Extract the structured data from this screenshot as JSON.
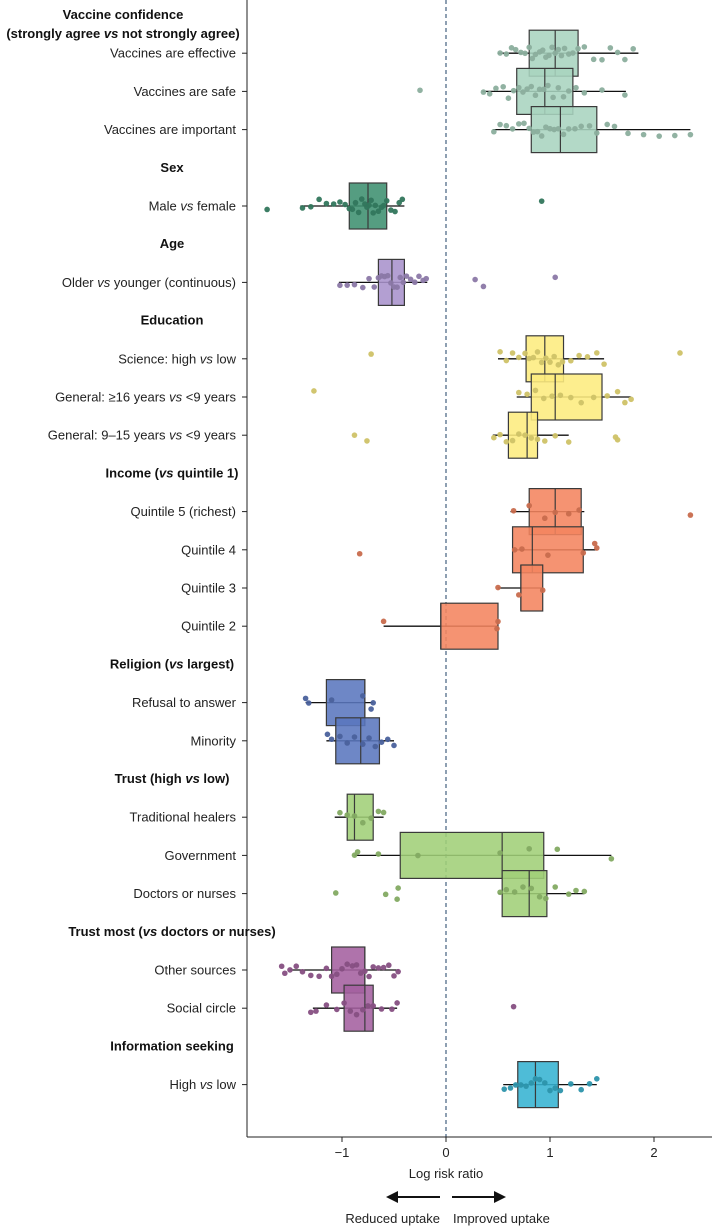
{
  "chart_data": {
    "type": "boxplot",
    "xlabel": "Log risk ratio",
    "xlim": [
      -1.92,
      2.55
    ],
    "x_ticks": [
      -1,
      0,
      1,
      2
    ],
    "x_tick_labels": [
      "−1",
      "0",
      "1",
      "2"
    ],
    "reference_line": 0,
    "direction_labels": {
      "left": "Reduced uptake",
      "right": "Improved uptake"
    },
    "rows": [
      {
        "kind": "header",
        "label": "Vaccine confidence",
        "label2": "(strongly agree vs not strongly agree)"
      },
      {
        "kind": "item",
        "label": "Vaccines are effective",
        "color": "#a9d4bf",
        "q1": 0.8,
        "median": 1.05,
        "q3": 1.27,
        "wmin": 0.5,
        "wmax": 1.85,
        "points": [
          0.52,
          0.58,
          0.63,
          0.67,
          0.72,
          0.76,
          0.8,
          0.83,
          0.86,
          0.9,
          0.93,
          0.96,
          0.99,
          1.02,
          1.05,
          1.08,
          1.11,
          1.14,
          1.18,
          1.22,
          1.27,
          1.33,
          1.42,
          1.5,
          1.58,
          1.65,
          1.72,
          1.8
        ]
      },
      {
        "kind": "item",
        "label": "Vaccines are safe",
        "color": "#a9d4bf",
        "q1": 0.68,
        "median": 0.95,
        "q3": 1.22,
        "wmin": 0.35,
        "wmax": 1.73,
        "points": [
          -0.25,
          0.36,
          0.42,
          0.48,
          0.55,
          0.6,
          0.65,
          0.7,
          0.74,
          0.78,
          0.82,
          0.86,
          0.9,
          0.94,
          0.98,
          1.03,
          1.08,
          1.13,
          1.18,
          1.25,
          1.33,
          1.5,
          1.72
        ]
      },
      {
        "kind": "item",
        "label": "Vaccines are important",
        "color": "#a9d4bf",
        "q1": 0.82,
        "median": 1.1,
        "q3": 1.45,
        "wmin": 0.45,
        "wmax": 2.35,
        "points": [
          0.46,
          0.52,
          0.58,
          0.64,
          0.7,
          0.75,
          0.8,
          0.84,
          0.88,
          0.92,
          0.96,
          1.0,
          1.04,
          1.08,
          1.13,
          1.18,
          1.24,
          1.3,
          1.38,
          1.45,
          1.55,
          1.62,
          1.75,
          1.9,
          2.05,
          2.2,
          2.35
        ]
      },
      {
        "kind": "header",
        "label": "Sex"
      },
      {
        "kind": "item",
        "label": "Male vs female",
        "color": "#3d9070",
        "q1": -0.93,
        "median": -0.75,
        "q3": -0.57,
        "wmin": -1.4,
        "wmax": -0.4,
        "points": [
          -1.72,
          -1.38,
          -1.3,
          -1.22,
          -1.15,
          -1.08,
          -1.02,
          -0.97,
          -0.93,
          -0.9,
          -0.87,
          -0.84,
          -0.81,
          -0.78,
          -0.76,
          -0.74,
          -0.72,
          -0.7,
          -0.68,
          -0.65,
          -0.62,
          -0.6,
          -0.57,
          -0.53,
          -0.49,
          -0.45,
          -0.42,
          0.92
        ]
      },
      {
        "kind": "header",
        "label": "Age"
      },
      {
        "kind": "item",
        "label": "Older vs younger (continuous)",
        "color": "#a992cc",
        "q1": -0.65,
        "median": -0.52,
        "q3": -0.4,
        "wmin": -1.03,
        "wmax": -0.18,
        "points": [
          -1.02,
          -0.95,
          -0.88,
          -0.8,
          -0.74,
          -0.69,
          -0.65,
          -0.62,
          -0.59,
          -0.56,
          -0.53,
          -0.5,
          -0.47,
          -0.44,
          -0.41,
          -0.38,
          -0.34,
          -0.3,
          -0.26,
          -0.22,
          -0.19,
          0.28,
          0.36,
          1.05
        ]
      },
      {
        "kind": "header",
        "label": "Education"
      },
      {
        "kind": "item",
        "label": "Science: high vs low",
        "color": "#fdec7e",
        "q1": 0.77,
        "median": 0.95,
        "q3": 1.13,
        "wmin": 0.5,
        "wmax": 1.52,
        "points": [
          -0.72,
          0.52,
          0.58,
          0.64,
          0.7,
          0.76,
          0.8,
          0.84,
          0.88,
          0.92,
          0.96,
          1.0,
          1.04,
          1.08,
          1.12,
          1.2,
          1.28,
          1.36,
          1.45,
          1.52,
          2.25
        ]
      },
      {
        "kind": "item",
        "label": "General: ≥16 years vs <9 years",
        "color": "#fdec7e",
        "q1": 0.82,
        "median": 1.05,
        "q3": 1.5,
        "wmin": 0.68,
        "wmax": 1.78,
        "points": [
          -1.27,
          0.7,
          0.78,
          0.86,
          0.94,
          1.02,
          1.1,
          1.2,
          1.3,
          1.42,
          1.55,
          1.65,
          1.72,
          1.78
        ]
      },
      {
        "kind": "item",
        "label": "General: 9–15 years vs <9 years",
        "color": "#fdec7e",
        "q1": 0.6,
        "median": 0.78,
        "q3": 0.88,
        "wmin": 0.45,
        "wmax": 1.18,
        "points": [
          -0.88,
          -0.76,
          0.46,
          0.52,
          0.58,
          0.64,
          0.7,
          0.76,
          0.82,
          0.88,
          0.95,
          1.05,
          1.18,
          1.63,
          1.65
        ]
      },
      {
        "kind": "header",
        "label": "Income (vs quintile 1)"
      },
      {
        "kind": "item",
        "label": "Quintile 5 (richest)",
        "color": "#f4845e",
        "q1": 0.8,
        "median": 1.05,
        "q3": 1.3,
        "wmin": 0.62,
        "wmax": 1.33,
        "points": [
          0.65,
          0.8,
          0.95,
          1.05,
          1.18,
          1.28,
          2.35
        ]
      },
      {
        "kind": "item",
        "label": "Quintile 4",
        "color": "#f4845e",
        "q1": 0.64,
        "median": 0.83,
        "q3": 1.32,
        "wmin": 0.64,
        "wmax": 1.45,
        "points": [
          -0.83,
          0.66,
          0.73,
          0.98,
          1.32,
          1.43,
          1.45
        ]
      },
      {
        "kind": "item",
        "label": "Quintile 3",
        "color": "#f4845e",
        "q1": 0.72,
        "median": 0.72,
        "q3": 0.93,
        "wmin": 0.5,
        "wmax": 0.93,
        "points": [
          0.5,
          0.7,
          0.93
        ]
      },
      {
        "kind": "item",
        "label": "Quintile 2",
        "color": "#f4845e",
        "q1": -0.05,
        "median": -0.05,
        "q3": 0.5,
        "wmin": -0.6,
        "wmax": 0.5,
        "points": [
          -0.6,
          0.49,
          0.5
        ]
      },
      {
        "kind": "header",
        "label": "Religion (vs largest)"
      },
      {
        "kind": "item",
        "label": "Refusal to answer",
        "color": "#5a76be",
        "q1": -1.15,
        "median": -0.78,
        "q3": -0.78,
        "wmin": -1.35,
        "wmax": -0.7,
        "points": [
          -1.35,
          -1.32,
          -1.1,
          -0.8,
          -0.72,
          -0.7
        ]
      },
      {
        "kind": "item",
        "label": "Minority",
        "color": "#5a76be",
        "q1": -1.06,
        "median": -0.82,
        "q3": -0.64,
        "wmin": -1.15,
        "wmax": -0.5,
        "points": [
          -1.14,
          -1.1,
          -1.02,
          -0.95,
          -0.88,
          -0.8,
          -0.74,
          -0.68,
          -0.62,
          -0.56,
          -0.5
        ]
      },
      {
        "kind": "header",
        "label": "Trust (high vs low)"
      },
      {
        "kind": "item",
        "label": "Traditional healers",
        "color": "#a0cf78",
        "q1": -0.95,
        "median": -0.88,
        "q3": -0.7,
        "wmin": -1.07,
        "wmax": -0.6,
        "points": [
          -1.02,
          -0.95,
          -0.88,
          -0.8,
          -0.72,
          -0.65,
          -0.6
        ]
      },
      {
        "kind": "item",
        "label": "Government",
        "color": "#a0cf78",
        "q1": -0.44,
        "median": 0.54,
        "q3": 0.94,
        "wmin": -0.88,
        "wmax": 1.59,
        "points": [
          -0.88,
          -0.85,
          -0.65,
          -0.27,
          0.52,
          0.8,
          1.07,
          1.59
        ]
      },
      {
        "kind": "item",
        "label": "Doctors or nurses",
        "color": "#a0cf78",
        "q1": 0.54,
        "median": 0.8,
        "q3": 0.97,
        "wmin": 0.5,
        "wmax": 1.33,
        "points": [
          -1.06,
          -0.58,
          -0.47,
          -0.46,
          0.52,
          0.58,
          0.66,
          0.74,
          0.82,
          0.9,
          0.96,
          1.05,
          1.18,
          1.25,
          1.33
        ]
      },
      {
        "kind": "header",
        "label": "Trust most (vs doctors or nurses)"
      },
      {
        "kind": "item",
        "label": "Other sources",
        "color": "#a4609f",
        "q1": -1.1,
        "median": -0.78,
        "q3": -0.78,
        "wmin": -1.5,
        "wmax": -0.45,
        "points": [
          -1.58,
          -1.55,
          -1.5,
          -1.44,
          -1.38,
          -1.3,
          -1.22,
          -1.15,
          -1.1,
          -1.05,
          -1.0,
          -0.95,
          -0.9,
          -0.86,
          -0.82,
          -0.78,
          -0.74,
          -0.7,
          -0.65,
          -0.6,
          -0.55,
          -0.5,
          -0.46
        ]
      },
      {
        "kind": "item",
        "label": "Social circle",
        "color": "#a4609f",
        "q1": -0.98,
        "median": -0.78,
        "q3": -0.7,
        "wmin": -1.28,
        "wmax": -0.47,
        "points": [
          -1.3,
          -1.25,
          -1.15,
          -1.05,
          -0.98,
          -0.92,
          -0.86,
          -0.8,
          -0.75,
          -0.7,
          -0.62,
          -0.52,
          -0.47,
          0.65
        ]
      },
      {
        "kind": "header",
        "label": "Information seeking"
      },
      {
        "kind": "item",
        "label": "High vs low",
        "color": "#36b3d1",
        "q1": 0.69,
        "median": 0.86,
        "q3": 1.08,
        "wmin": 0.55,
        "wmax": 1.45,
        "points": [
          0.56,
          0.62,
          0.67,
          0.72,
          0.77,
          0.82,
          0.86,
          0.9,
          0.95,
          1.0,
          1.05,
          1.1,
          1.2,
          1.3,
          1.38,
          1.45
        ]
      }
    ]
  }
}
